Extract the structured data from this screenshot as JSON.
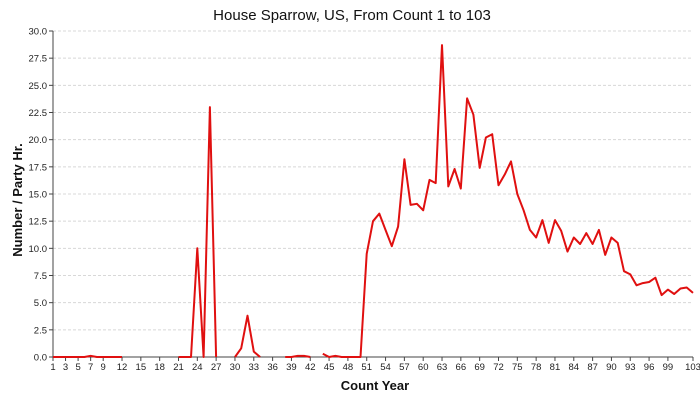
{
  "chart_data": {
    "type": "line",
    "title": "House Sparrow, US,  From Count 1 to 103",
    "xlabel": "Count Year",
    "ylabel": "Number / Party Hr.",
    "xlim": [
      1,
      103
    ],
    "ylim": [
      0,
      30
    ],
    "grid": true,
    "legend": "none",
    "line_color": "#e01010",
    "x_ticks": [
      1,
      3,
      5,
      7,
      9,
      12,
      15,
      18,
      21,
      24,
      27,
      30,
      33,
      36,
      39,
      42,
      45,
      48,
      51,
      54,
      57,
      60,
      63,
      66,
      69,
      72,
      75,
      78,
      81,
      84,
      87,
      90,
      93,
      96,
      99,
      103
    ],
    "y_ticks": [
      "0.0",
      "2.5",
      "5.0",
      "7.5",
      "10.0",
      "12.5",
      "15.0",
      "17.5",
      "20.0",
      "22.5",
      "25.0",
      "27.5",
      "30.0"
    ],
    "series": [
      {
        "x": [
          1,
          2,
          3,
          4,
          5,
          6,
          7,
          8,
          9,
          10,
          11,
          12,
          13,
          14,
          15,
          16,
          17,
          18,
          19,
          20,
          21,
          22,
          23,
          24,
          25,
          26,
          27,
          28,
          29,
          30,
          31,
          32,
          33,
          34,
          35,
          36,
          37,
          38,
          39,
          40,
          41,
          42,
          43,
          44,
          45,
          46,
          47,
          48,
          49,
          50,
          51,
          52,
          53,
          54,
          55,
          56,
          57,
          58,
          59,
          60,
          61,
          62,
          63,
          64,
          65,
          66,
          67,
          68,
          69,
          70,
          71,
          72,
          73,
          74,
          75,
          76,
          77,
          78,
          79,
          80,
          81,
          82,
          83,
          84,
          85,
          86,
          87,
          88,
          89,
          90,
          91,
          92,
          93,
          94,
          95,
          96,
          97,
          98,
          99,
          100,
          101,
          102,
          103
        ],
        "values": [
          0,
          0,
          0,
          0,
          0,
          0,
          0.1,
          0,
          0,
          0,
          0,
          0,
          null,
          null,
          0,
          null,
          null,
          0,
          null,
          null,
          0,
          0,
          0,
          10,
          0,
          23,
          0,
          null,
          null,
          0,
          0.8,
          3.8,
          0.5,
          0,
          null,
          null,
          null,
          0,
          0,
          0.1,
          0.1,
          0,
          null,
          0.3,
          0,
          0.1,
          0,
          0,
          0,
          0,
          9.5,
          12.5,
          13.2,
          11.7,
          10.2,
          12,
          18.2,
          14,
          14.1,
          13.5,
          16.3,
          16,
          28.7,
          15.7,
          17.3,
          15.5,
          23.8,
          22.3,
          17.4,
          20.2,
          20.5,
          15.8,
          16.8,
          18,
          15,
          13.5,
          11.7,
          11,
          12.6,
          10.5,
          12.6,
          11.6,
          9.7,
          11,
          10.4,
          11.4,
          10.4,
          11.7,
          9.4,
          11,
          10.5,
          7.9,
          7.6,
          6.6,
          6.8,
          6.9,
          7.3,
          5.7,
          6.2,
          5.8,
          6.3,
          6.4,
          5.9
        ]
      }
    ]
  }
}
